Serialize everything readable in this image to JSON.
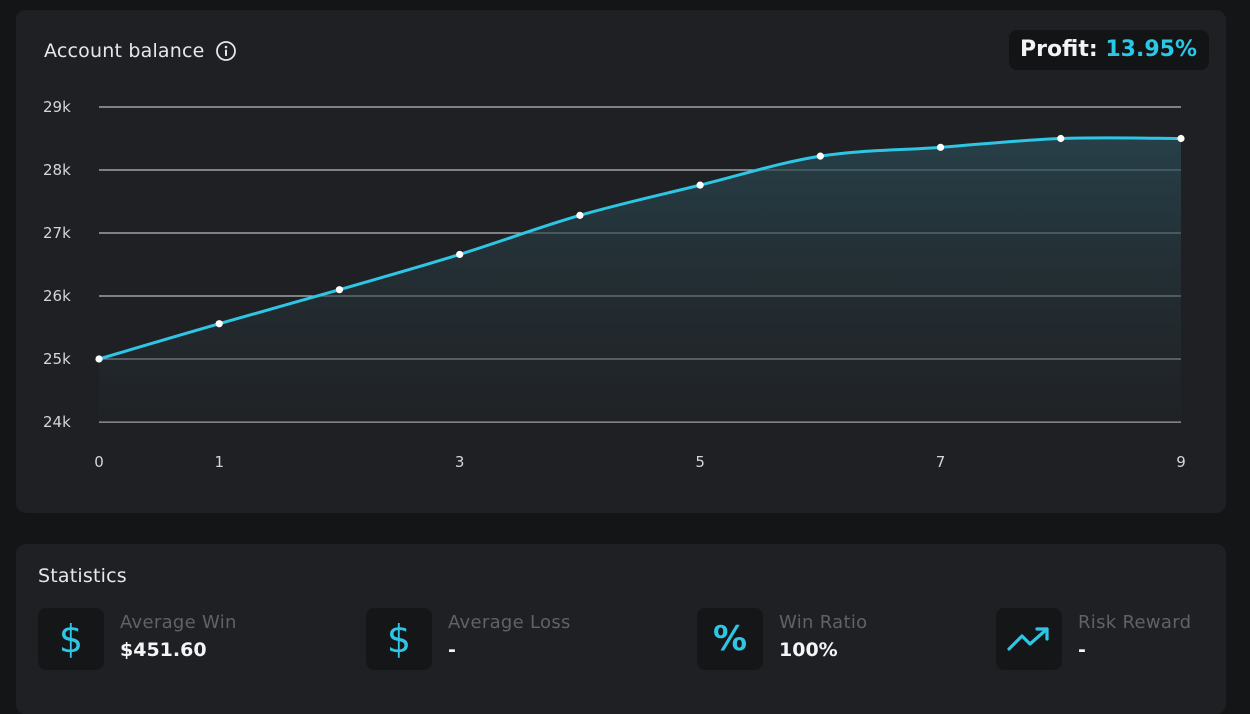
{
  "balance_card": {
    "title": "Account balance",
    "profit_label": "Profit:",
    "profit_value": "13.95%"
  },
  "chart_data": {
    "type": "area",
    "title": "",
    "xlabel": "",
    "ylabel": "",
    "x": [
      0,
      1,
      2,
      3,
      4,
      5,
      6,
      7,
      8,
      9
    ],
    "values": [
      25000,
      25560,
      26100,
      26660,
      27280,
      27760,
      28220,
      28360,
      28500,
      28500
    ],
    "x_ticks": [
      "0",
      "1",
      "3",
      "5",
      "7",
      "9"
    ],
    "y_ticks": [
      "29k",
      "28k",
      "27k",
      "26k",
      "25k",
      "24k"
    ],
    "xlim": [
      0,
      9
    ],
    "ylim": [
      24000,
      29000
    ],
    "grid": "horizontal",
    "colors": {
      "line": "#2ec6e4",
      "point": "#ffffff",
      "grid": "#b9bcc0"
    }
  },
  "statistics": {
    "title": "Statistics",
    "items": [
      {
        "label": "Average Win",
        "value": "$451.60",
        "icon": "dollar-icon"
      },
      {
        "label": "Average Loss",
        "value": "-",
        "icon": "dollar-icon"
      },
      {
        "label": "Win Ratio",
        "value": "100%",
        "icon": "percent-icon"
      },
      {
        "label": "Risk Reward",
        "value": "-",
        "icon": "trending-up-icon"
      }
    ]
  }
}
